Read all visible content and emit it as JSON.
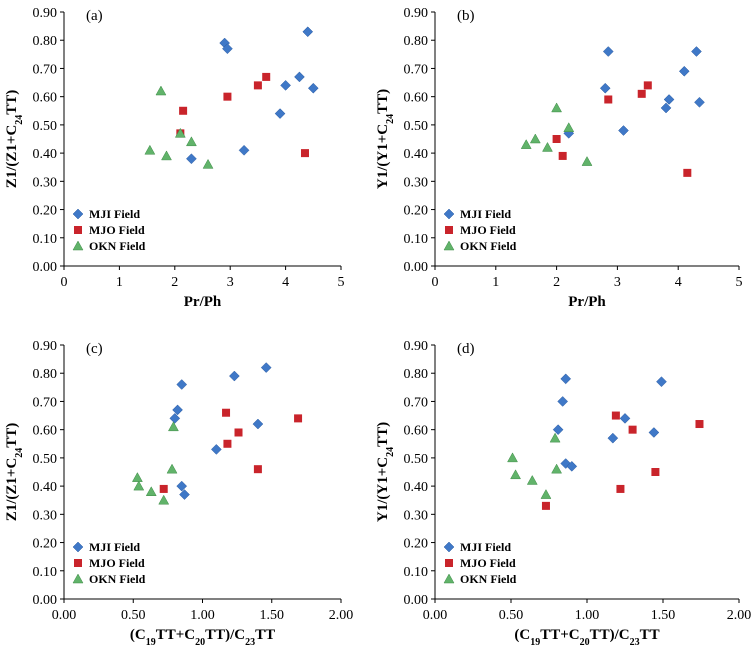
{
  "figure": {
    "series_colors": {
      "MJI Field": "#3f78c7",
      "MJO Field": "#c9242b",
      "OKN Field": "#61b36a"
    },
    "marker_shapes": {
      "MJI Field": "diamond",
      "MJO Field": "square",
      "OKN Field": "triangle"
    }
  },
  "chart_data": [
    {
      "id": "a",
      "type": "scatter",
      "panel_label": "(a)",
      "xlabel": "Pr/Ph",
      "ylabel": "Z1/(Z1+C24TT)",
      "xlim": [
        0,
        5
      ],
      "ylim": [
        0,
        0.9
      ],
      "x_ticks": [
        0,
        1,
        2,
        3,
        4,
        5
      ],
      "x_tick_labels": [
        "0",
        "1",
        "2",
        "3",
        "4",
        "5"
      ],
      "y_ticks": [
        0,
        0.1,
        0.2,
        0.3,
        0.4,
        0.5,
        0.6,
        0.7,
        0.8,
        0.9
      ],
      "y_tick_labels": [
        "0.00",
        "0.10",
        "0.20",
        "0.30",
        "0.40",
        "0.50",
        "0.60",
        "0.70",
        "0.80",
        "0.90"
      ],
      "legend": [
        "MJI Field",
        "MJO Field",
        "OKN Field"
      ],
      "series": [
        {
          "name": "MJI Field",
          "points": [
            [
              2.9,
              0.79
            ],
            [
              2.95,
              0.77
            ],
            [
              2.3,
              0.38
            ],
            [
              3.25,
              0.41
            ],
            [
              3.9,
              0.54
            ],
            [
              4.0,
              0.64
            ],
            [
              4.25,
              0.67
            ],
            [
              4.4,
              0.83
            ],
            [
              4.5,
              0.63
            ]
          ]
        },
        {
          "name": "MJO Field",
          "points": [
            [
              2.15,
              0.55
            ],
            [
              2.1,
              0.47
            ],
            [
              2.95,
              0.6
            ],
            [
              3.5,
              0.64
            ],
            [
              3.65,
              0.67
            ],
            [
              4.35,
              0.4
            ]
          ]
        },
        {
          "name": "OKN Field",
          "points": [
            [
              1.55,
              0.41
            ],
            [
              1.75,
              0.62
            ],
            [
              1.85,
              0.39
            ],
            [
              2.1,
              0.47
            ],
            [
              2.3,
              0.44
            ],
            [
              2.6,
              0.36
            ]
          ]
        }
      ]
    },
    {
      "id": "b",
      "type": "scatter",
      "panel_label": "(b)",
      "xlabel": "Pr/Ph",
      "ylabel": "Y1/(Y1+C24TT)",
      "xlim": [
        0,
        5
      ],
      "ylim": [
        0,
        0.9
      ],
      "x_ticks": [
        0,
        1,
        2,
        3,
        4,
        5
      ],
      "x_tick_labels": [
        "0",
        "1",
        "2",
        "3",
        "4",
        "5"
      ],
      "y_ticks": [
        0,
        0.1,
        0.2,
        0.3,
        0.4,
        0.5,
        0.6,
        0.7,
        0.8,
        0.9
      ],
      "y_tick_labels": [
        "0.00",
        "0.10",
        "0.20",
        "0.30",
        "0.40",
        "0.50",
        "0.60",
        "0.70",
        "0.80",
        "0.90"
      ],
      "legend": [
        "MJI Field",
        "MJO Field",
        "OKN Field"
      ],
      "series": [
        {
          "name": "MJI Field",
          "points": [
            [
              2.2,
              0.47
            ],
            [
              2.8,
              0.63
            ],
            [
              2.85,
              0.76
            ],
            [
              3.1,
              0.48
            ],
            [
              3.8,
              0.56
            ],
            [
              3.85,
              0.59
            ],
            [
              4.1,
              0.69
            ],
            [
              4.3,
              0.76
            ],
            [
              4.35,
              0.58
            ]
          ]
        },
        {
          "name": "MJO Field",
          "points": [
            [
              2.0,
              0.45
            ],
            [
              2.1,
              0.39
            ],
            [
              2.85,
              0.59
            ],
            [
              3.4,
              0.61
            ],
            [
              3.5,
              0.64
            ],
            [
              4.15,
              0.33
            ]
          ]
        },
        {
          "name": "OKN Field",
          "points": [
            [
              1.5,
              0.43
            ],
            [
              1.65,
              0.45
            ],
            [
              1.85,
              0.42
            ],
            [
              2.0,
              0.56
            ],
            [
              2.2,
              0.49
            ],
            [
              2.5,
              0.37
            ]
          ]
        }
      ]
    },
    {
      "id": "c",
      "type": "scatter",
      "panel_label": "(c)",
      "xlabel": "(C19TT+C20TT)/C23TT",
      "ylabel": "Z1/(Z1+C24TT)",
      "xlim": [
        0,
        2
      ],
      "ylim": [
        0,
        0.9
      ],
      "x_ticks": [
        0,
        0.5,
        1,
        1.5,
        2
      ],
      "x_tick_labels": [
        "0.00",
        "0.50",
        "1.00",
        "1.50",
        "2.00"
      ],
      "y_ticks": [
        0,
        0.1,
        0.2,
        0.3,
        0.4,
        0.5,
        0.6,
        0.7,
        0.8,
        0.9
      ],
      "y_tick_labels": [
        "0.00",
        "0.10",
        "0.20",
        "0.30",
        "0.40",
        "0.50",
        "0.60",
        "0.70",
        "0.80",
        "0.90"
      ],
      "legend": [
        "MJI Field",
        "MJO Field",
        "OKN Field"
      ],
      "series": [
        {
          "name": "MJI Field",
          "points": [
            [
              0.8,
              0.64
            ],
            [
              0.82,
              0.67
            ],
            [
              0.85,
              0.76
            ],
            [
              0.85,
              0.4
            ],
            [
              0.87,
              0.37
            ],
            [
              1.1,
              0.53
            ],
            [
              1.23,
              0.79
            ],
            [
              1.4,
              0.62
            ],
            [
              1.46,
              0.82
            ]
          ]
        },
        {
          "name": "MJO Field",
          "points": [
            [
              0.72,
              0.39
            ],
            [
              1.17,
              0.66
            ],
            [
              1.18,
              0.55
            ],
            [
              1.26,
              0.59
            ],
            [
              1.4,
              0.46
            ],
            [
              1.69,
              0.64
            ]
          ]
        },
        {
          "name": "OKN Field",
          "points": [
            [
              0.53,
              0.43
            ],
            [
              0.54,
              0.4
            ],
            [
              0.63,
              0.38
            ],
            [
              0.72,
              0.35
            ],
            [
              0.78,
              0.46
            ],
            [
              0.79,
              0.61
            ]
          ]
        }
      ]
    },
    {
      "id": "d",
      "type": "scatter",
      "panel_label": "(d)",
      "xlabel": "(C19TT+C20TT)/C23TT",
      "ylabel": "Y1/(Y1+C24TT)",
      "xlim": [
        0,
        2
      ],
      "ylim": [
        0,
        0.9
      ],
      "x_ticks": [
        0,
        0.5,
        1,
        1.5,
        2
      ],
      "x_tick_labels": [
        "0.00",
        "0.50",
        "1.00",
        "1.50",
        "2.00"
      ],
      "y_ticks": [
        0,
        0.1,
        0.2,
        0.3,
        0.4,
        0.5,
        0.6,
        0.7,
        0.8,
        0.9
      ],
      "y_tick_labels": [
        "0.00",
        "0.10",
        "0.20",
        "0.30",
        "0.40",
        "0.50",
        "0.60",
        "0.70",
        "0.80",
        "0.90"
      ],
      "legend": [
        "MJI Field",
        "MJO Field",
        "OKN Field"
      ],
      "series": [
        {
          "name": "MJI Field",
          "points": [
            [
              0.81,
              0.6
            ],
            [
              0.84,
              0.7
            ],
            [
              0.86,
              0.78
            ],
            [
              0.86,
              0.48
            ],
            [
              0.9,
              0.47
            ],
            [
              1.17,
              0.57
            ],
            [
              1.25,
              0.64
            ],
            [
              1.44,
              0.59
            ],
            [
              1.49,
              0.77
            ]
          ]
        },
        {
          "name": "MJO Field",
          "points": [
            [
              0.73,
              0.33
            ],
            [
              1.19,
              0.65
            ],
            [
              1.22,
              0.39
            ],
            [
              1.3,
              0.6
            ],
            [
              1.45,
              0.45
            ],
            [
              1.74,
              0.62
            ]
          ]
        },
        {
          "name": "OKN Field",
          "points": [
            [
              0.51,
              0.5
            ],
            [
              0.53,
              0.44
            ],
            [
              0.64,
              0.42
            ],
            [
              0.73,
              0.37
            ],
            [
              0.79,
              0.57
            ],
            [
              0.8,
              0.46
            ]
          ]
        }
      ]
    }
  ]
}
